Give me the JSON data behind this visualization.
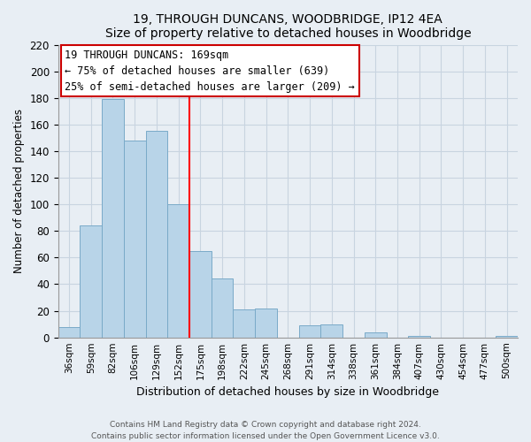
{
  "title": "19, THROUGH DUNCANS, WOODBRIDGE, IP12 4EA",
  "subtitle": "Size of property relative to detached houses in Woodbridge",
  "xlabel": "Distribution of detached houses by size in Woodbridge",
  "ylabel": "Number of detached properties",
  "bar_color": "#b8d4e8",
  "bar_edge_color": "#7aaac8",
  "categories": [
    "36sqm",
    "59sqm",
    "82sqm",
    "106sqm",
    "129sqm",
    "152sqm",
    "175sqm",
    "198sqm",
    "222sqm",
    "245sqm",
    "268sqm",
    "291sqm",
    "314sqm",
    "338sqm",
    "361sqm",
    "384sqm",
    "407sqm",
    "430sqm",
    "454sqm",
    "477sqm",
    "500sqm"
  ],
  "values": [
    8,
    84,
    179,
    148,
    155,
    100,
    65,
    44,
    21,
    22,
    0,
    9,
    10,
    0,
    4,
    0,
    1,
    0,
    0,
    0,
    1
  ],
  "ylim": [
    0,
    220
  ],
  "yticks": [
    0,
    20,
    40,
    60,
    80,
    100,
    120,
    140,
    160,
    180,
    200,
    220
  ],
  "reference_line_index": 6,
  "annotation_title": "19 THROUGH DUNCANS: 169sqm",
  "annotation_line1": "← 75% of detached houses are smaller (639)",
  "annotation_line2": "25% of semi-detached houses are larger (209) →",
  "footer_line1": "Contains HM Land Registry data © Crown copyright and database right 2024.",
  "footer_line2": "Contains public sector information licensed under the Open Government Licence v3.0.",
  "background_color": "#e8eef4",
  "plot_bg_color": "#e8eef4",
  "grid_color": "#c8d4e0"
}
